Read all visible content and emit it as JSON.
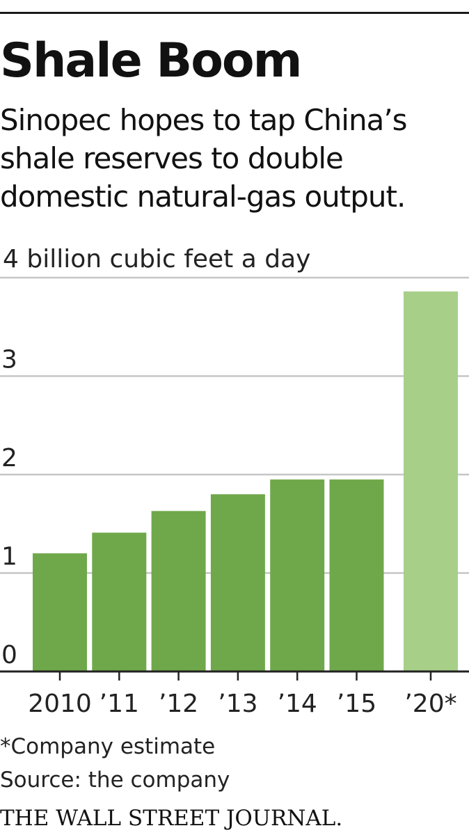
{
  "header": {
    "title": "Shale Boom",
    "subtitle": "Sinopec hopes to tap China’s shale reserves to double domestic natural-gas output."
  },
  "chart_data": {
    "type": "bar",
    "categories": [
      "2010",
      "’11",
      "’12",
      "’13",
      "’14",
      "’15",
      "’20*"
    ],
    "values": [
      1.2,
      1.41,
      1.63,
      1.8,
      1.95,
      1.95,
      3.86
    ],
    "estimate_flags": [
      false,
      false,
      false,
      false,
      false,
      false,
      true
    ],
    "unit_label": "4 billion cubic feet a day",
    "y_ticks": [
      "0",
      "1",
      "2",
      "3"
    ],
    "ylim": [
      0,
      4
    ],
    "grid": true,
    "colors": {
      "actual": "#6fa84a",
      "estimate": "#a7cf88",
      "grid": "#c6c6c6",
      "axis": "#222222"
    }
  },
  "footer": {
    "footnote": "*Company estimate",
    "source": "Source: the company",
    "publisher": "THE WALL STREET JOURNAL."
  }
}
